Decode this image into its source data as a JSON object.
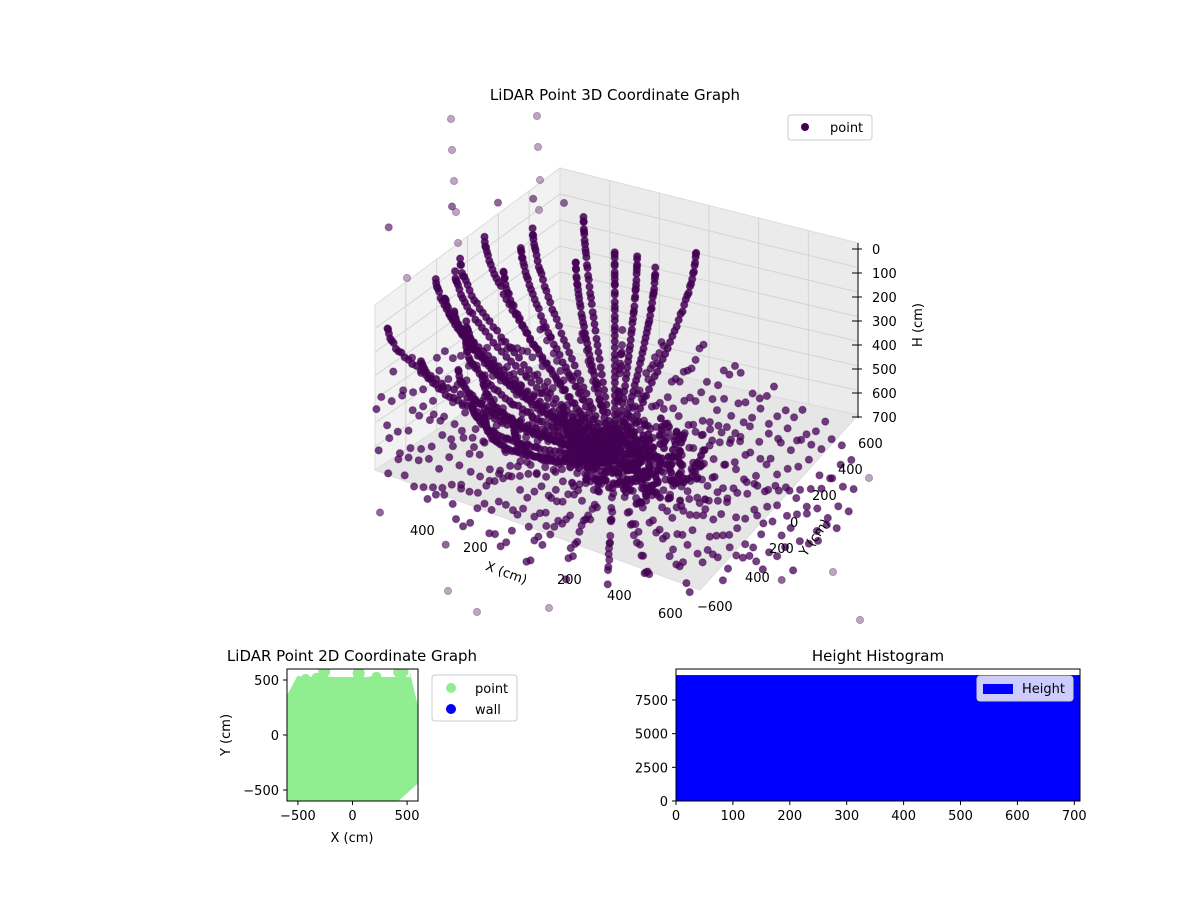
{
  "chart_data": [
    {
      "type": "scatter",
      "projection": "3d",
      "title": "LiDAR Point 3D Coordinate Graph",
      "xlabel": "X (cm)",
      "ylabel": "Y (cm)",
      "zlabel": "H (cm)",
      "xlim": [
        -600,
        600
      ],
      "ylim": [
        -600,
        600
      ],
      "zlim": [
        0,
        700
      ],
      "z_inverted": true,
      "x_ticks": [
        "200",
        "200",
        "400",
        "600"
      ],
      "y_ticks": [
        "−600",
        "400",
        "200",
        "0",
        "200",
        "400",
        "600"
      ],
      "z_ticks": [
        "0",
        "100",
        "200",
        "300",
        "400",
        "500",
        "600",
        "700"
      ],
      "legend": {
        "placement": "top-right",
        "entries": [
          {
            "name": "point",
            "color": "#440154"
          }
        ]
      },
      "grid": true,
      "point_color": "#440154",
      "description_points": {
        "ring_radius_max": 600,
        "arc_count": 26,
        "scattered_points": [
          [
            -560,
            -140,
            0
          ],
          [
            -540,
            120,
            60
          ],
          [
            -520,
            300,
            140
          ],
          [
            -500,
            430,
            190
          ],
          [
            -480,
            540,
            260
          ],
          [
            40,
            -520,
            30
          ],
          [
            120,
            -560,
            120
          ],
          [
            200,
            -600,
            60
          ],
          [
            520,
            560,
            600
          ],
          [
            560,
            520,
            640
          ],
          [
            580,
            580,
            700
          ],
          [
            -300,
            -600,
            700
          ],
          [
            -100,
            -620,
            690
          ],
          [
            600,
            300,
            600
          ],
          [
            600,
            -200,
            640
          ]
        ]
      }
    },
    {
      "type": "scatter",
      "title": "LiDAR Point 2D Coordinate Graph",
      "xlabel": "X (cm)",
      "ylabel": "Y (cm)",
      "xlim": [
        -600,
        600
      ],
      "ylim": [
        -600,
        600
      ],
      "x_ticks": [
        -500,
        0,
        500
      ],
      "y_ticks": [
        -500,
        0,
        500
      ],
      "legend": {
        "placement": "outside-right",
        "entries": [
          {
            "name": "point",
            "color": "#90ee90"
          },
          {
            "name": "wall",
            "color": "#0000ff"
          }
        ]
      },
      "series": [
        {
          "name": "point",
          "color": "#90ee90",
          "coverage": "dense fill of the full plot area"
        },
        {
          "name": "wall",
          "color": "#0000ff",
          "points": []
        }
      ]
    },
    {
      "type": "bar",
      "title": "Height Histogram",
      "xlim": [
        0,
        710
      ],
      "ylim": [
        0,
        9800
      ],
      "x_ticks": [
        0,
        100,
        200,
        300,
        400,
        500,
        600,
        700
      ],
      "y_ticks": [
        0,
        2500,
        5000,
        7500
      ],
      "legend": {
        "placement": "upper-right",
        "entries": [
          {
            "name": "Height",
            "color": "#0000ff"
          }
        ]
      },
      "series": [
        {
          "name": "Height",
          "color": "#0000ff",
          "bin_range": [
            0,
            710
          ],
          "value": 9350
        }
      ]
    }
  ]
}
